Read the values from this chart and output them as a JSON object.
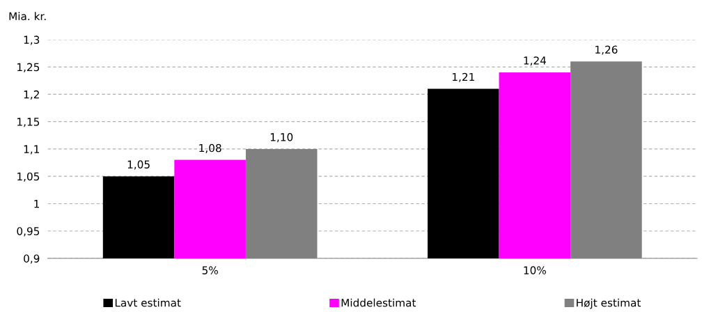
{
  "chart_data": {
    "type": "bar",
    "ylabel": "Mia. kr.",
    "categories": [
      "5%",
      "10%"
    ],
    "series": [
      {
        "name": "Lavt estimat",
        "color": "#000000",
        "values": [
          1.05,
          1.21
        ],
        "value_labels": [
          "1,05",
          "1,21"
        ]
      },
      {
        "name": "Middelestimat",
        "color": "#ff00ff",
        "values": [
          1.08,
          1.24
        ],
        "value_labels": [
          "1,08",
          "1,24"
        ]
      },
      {
        "name": "Højt estimat",
        "color": "#808080",
        "values": [
          1.1,
          1.26
        ],
        "value_labels": [
          "1,10",
          "1,26"
        ]
      }
    ],
    "ylim": [
      0.9,
      1.3
    ],
    "yticks": [
      {
        "value": 0.9,
        "label": "0,9"
      },
      {
        "value": 0.95,
        "label": "0,95"
      },
      1,
      {
        "value": 1.05,
        "label": "1,05"
      },
      {
        "value": 1.1,
        "label": "1,1"
      },
      {
        "value": 1.15,
        "label": "1,15"
      },
      {
        "value": 1.2,
        "label": "1,2"
      },
      {
        "value": 1.25,
        "label": "1,25"
      },
      {
        "value": 1.3,
        "label": "1,3"
      }
    ],
    "grid": "y",
    "legend": "bottom"
  }
}
